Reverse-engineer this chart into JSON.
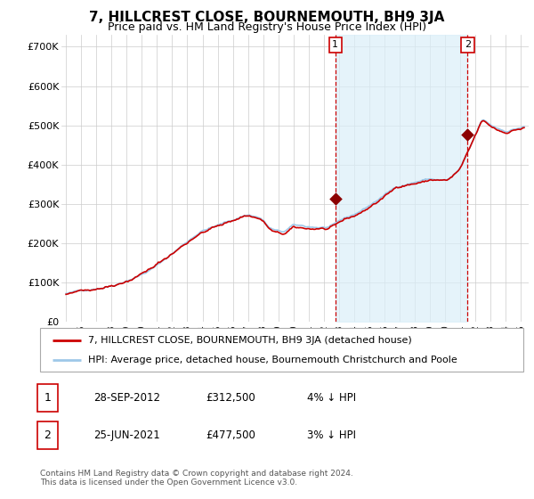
{
  "title": "7, HILLCREST CLOSE, BOURNEMOUTH, BH9 3JA",
  "subtitle": "Price paid vs. HM Land Registry's House Price Index (HPI)",
  "ylabel_ticks": [
    "£0",
    "£100K",
    "£200K",
    "£300K",
    "£400K",
    "£500K",
    "£600K",
    "£700K"
  ],
  "ytick_values": [
    0,
    100000,
    200000,
    300000,
    400000,
    500000,
    600000,
    700000
  ],
  "ylim": [
    0,
    730000
  ],
  "xlim_start": 1994.7,
  "xlim_end": 2025.5,
  "hpi_color": "#9ec8e8",
  "hpi_fill_color": "#daeef8",
  "price_color": "#cc0000",
  "dot_color": "#8b0000",
  "vline_color": "#cc0000",
  "grid_color": "#cccccc",
  "background_color": "#ffffff",
  "legend_label_price": "7, HILLCREST CLOSE, BOURNEMOUTH, BH9 3JA (detached house)",
  "legend_label_hpi": "HPI: Average price, detached house, Bournemouth Christchurch and Poole",
  "sale1_date": 2012.75,
  "sale1_price": 312500,
  "sale1_label": "1",
  "sale2_date": 2021.48,
  "sale2_price": 477500,
  "sale2_label": "2",
  "footer": "Contains HM Land Registry data © Crown copyright and database right 2024.\nThis data is licensed under the Open Government Licence v3.0.",
  "table_row1": [
    "1",
    "28-SEP-2012",
    "£312,500",
    "4% ↓ HPI"
  ],
  "table_row2": [
    "2",
    "25-JUN-2021",
    "£477,500",
    "3% ↓ HPI"
  ]
}
